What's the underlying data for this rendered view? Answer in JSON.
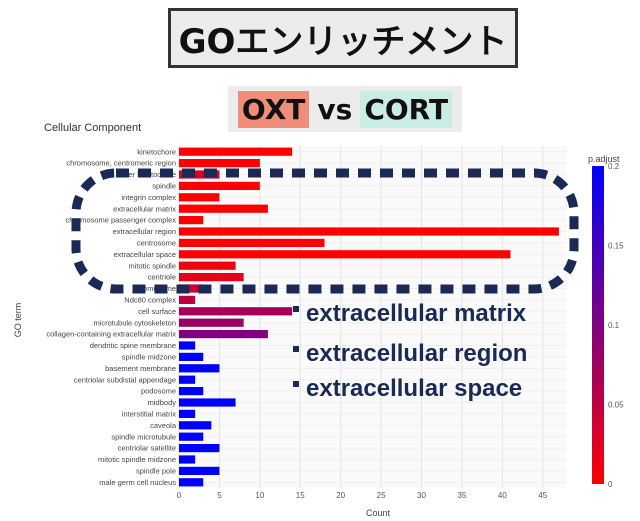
{
  "header": {
    "title": "GOエンリッチメント",
    "compare_a": "OXT",
    "compare_vs": "vs",
    "compare_b": "CORT"
  },
  "callouts": [
    "extracellular matrix",
    "extracellular region",
    "extracellular space"
  ],
  "colors": {
    "low_padj": "#ff0000",
    "high_padj": "#0000ff",
    "dashed_outline": "#1a2a55",
    "callout_text": "#1a2a55"
  },
  "chart_data": {
    "type": "bar",
    "orientation": "horizontal",
    "title": "Cellular Component",
    "xlabel": "Count",
    "ylabel": "GO term",
    "xlim": [
      0,
      48
    ],
    "xticks": [
      0,
      5,
      10,
      15,
      20,
      25,
      30,
      35,
      40,
      45
    ],
    "grid": true,
    "colorbar": {
      "title": "p.adjust",
      "range": [
        0,
        0.2
      ],
      "ticks": [
        0,
        0.05,
        0.1,
        0.15,
        0.2
      ],
      "low_color": "#ff0000",
      "high_color": "#0000ff"
    },
    "categories": [
      "kinetochore",
      "chromosome, centromeric region",
      "outer kinetochore",
      "spindle",
      "integrin complex",
      "extracellular matrix",
      "chromosome passenger complex",
      "extracellular region",
      "centrosome",
      "extracellular space",
      "mitotic spindle",
      "centriole",
      "chromosome",
      "Ndc80 complex",
      "cell surface",
      "microtubule cytoskeleton",
      "collagen-containing extracellular matrix",
      "dendritic spine membrane",
      "spindle midzone",
      "basement membrane",
      "centriolar subdistal appendage",
      "podosome",
      "midbody",
      "interstitial matrix",
      "caveola",
      "spindle microtubule",
      "centriolar satellite",
      "mitotic spindle midzone",
      "spindle pole",
      "male germ cell nucleus"
    ],
    "values": [
      14,
      10,
      5,
      10,
      5,
      11,
      3,
      47,
      18,
      41,
      7,
      8,
      3,
      2,
      14,
      8,
      11,
      2,
      3,
      5,
      2,
      3,
      7,
      2,
      4,
      3,
      5,
      2,
      5,
      3
    ],
    "p_adjust": [
      0.0,
      0.0,
      0.03,
      0.0,
      0.0,
      0.0,
      0.0,
      0.0,
      0.0,
      0.0,
      0.01,
      0.02,
      0.04,
      0.05,
      0.07,
      0.08,
      0.1,
      0.2,
      0.2,
      0.2,
      0.2,
      0.2,
      0.2,
      0.2,
      0.2,
      0.2,
      0.2,
      0.2,
      0.2,
      0.2
    ]
  }
}
